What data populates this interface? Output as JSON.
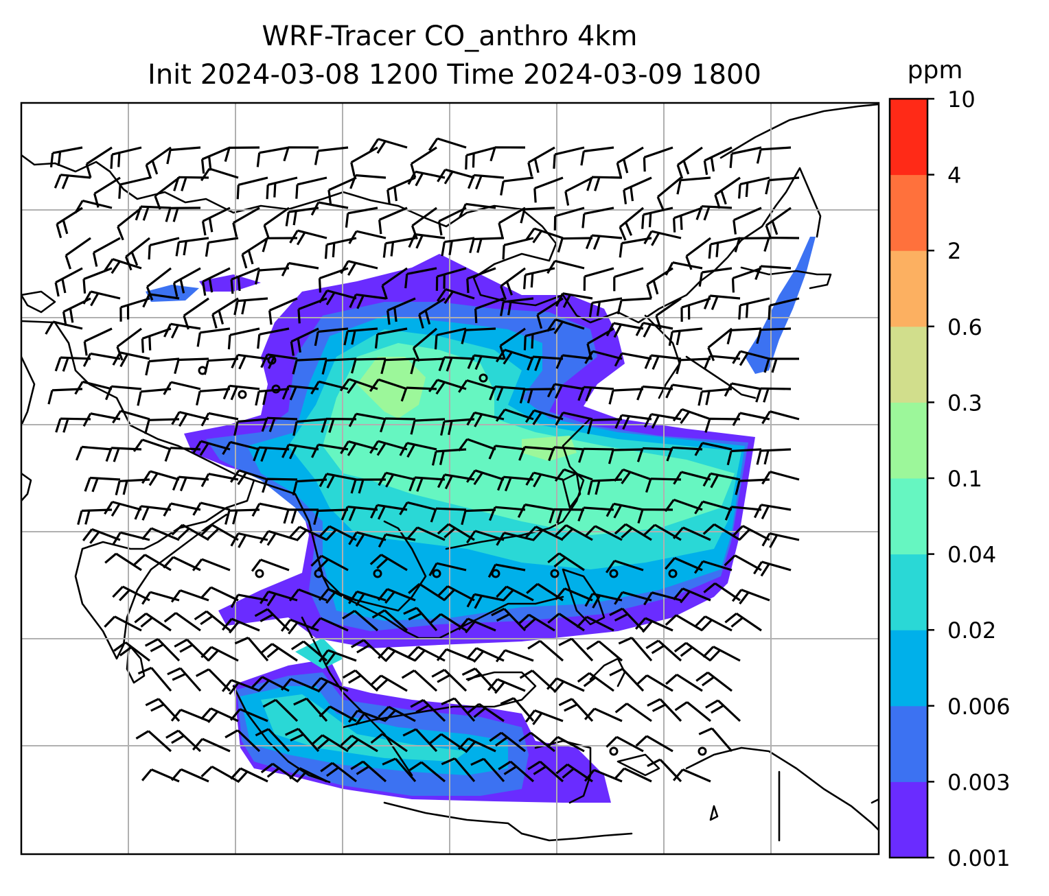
{
  "figure": {
    "title_line1": "WRF-Tracer CO_anthro 4km",
    "title_line2": "Init 2024-03-08 1200 Time 2024-03-09 1800"
  },
  "colorbar": {
    "unit": "ppm",
    "ticks": [
      "0.001",
      "0.003",
      "0.006",
      "0.02",
      "0.04",
      "0.1",
      "0.3",
      "0.6",
      "2",
      "4",
      "10"
    ],
    "levels": [
      0.001,
      0.003,
      0.006,
      0.02,
      0.04,
      0.1,
      0.3,
      0.6,
      2,
      4,
      10
    ],
    "colors": [
      "#6a2cff",
      "#3c72f2",
      "#00b0ea",
      "#2ad8d6",
      "#66f6c1",
      "#9cf79a",
      "#d1de8c",
      "#fcb061",
      "#ff713c",
      "#ff2a17"
    ]
  },
  "map": {
    "projection": "lat-lon",
    "gridlines": true,
    "field": "CO_anthro",
    "overlay": "wind barbs",
    "colors": {
      "coastline": "#000000",
      "gridline": "#b0b0b0",
      "background": "#ffffff"
    }
  }
}
